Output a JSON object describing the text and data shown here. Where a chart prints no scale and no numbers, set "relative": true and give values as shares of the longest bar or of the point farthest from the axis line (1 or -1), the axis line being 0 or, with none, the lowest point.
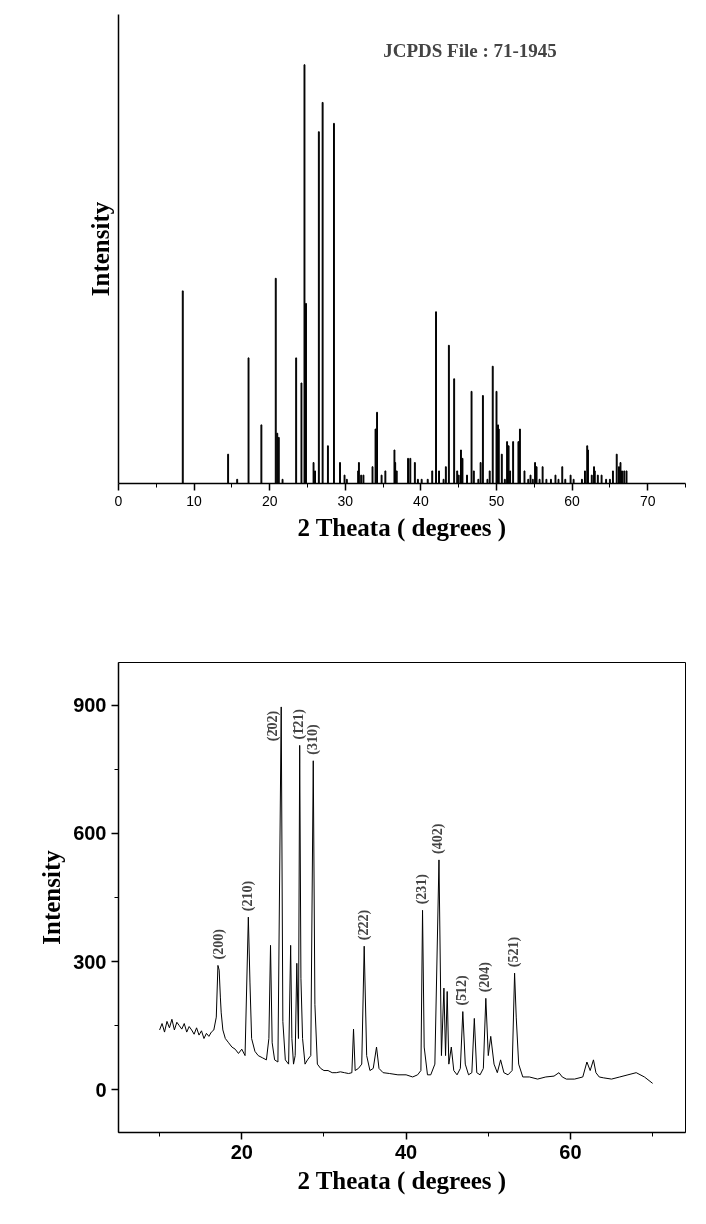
{
  "chart_data": [
    {
      "type": "bar",
      "relative": true,
      "xlabel": "2 Theata ( degrees )",
      "ylabel": "Intensity",
      "annotations": [
        "JCPDS File : 71-1945"
      ],
      "xlim": [
        0,
        75
      ],
      "xticks": [
        0,
        10,
        20,
        30,
        40,
        50,
        60,
        70
      ],
      "tick_labels": "x",
      "x": [
        8.5,
        14.5,
        15.7,
        17.2,
        18.9,
        20.8,
        21.0,
        21.2,
        21.7,
        23.5,
        24.2,
        24.6,
        24.8,
        25.8,
        26.0,
        26.5,
        27.0,
        27.7,
        28.5,
        29.3,
        29.9,
        30.2,
        31.7,
        31.8,
        32.1,
        32.4,
        33.6,
        34.0,
        34.2,
        34.8,
        35.3,
        36.5,
        36.6,
        36.8,
        38.3,
        38.6,
        39.2,
        39.6,
        40.1,
        40.9,
        41.5,
        42.0,
        42.4,
        43.0,
        43.3,
        43.7,
        44.4,
        44.8,
        45.0,
        45.3,
        45.5,
        46.1,
        46.7,
        47.0,
        47.6,
        47.9,
        48.2,
        48.8,
        49.1,
        49.5,
        50.0,
        50.2,
        50.3,
        50.7,
        51.1,
        51.4,
        51.6,
        51.8,
        52.2,
        52.9,
        53.1,
        53.7,
        54.2,
        54.5,
        54.8,
        55.1,
        55.3,
        55.7,
        56.1,
        56.6,
        57.2,
        57.8,
        58.2,
        58.7,
        59.1,
        59.8,
        60.2,
        61.3,
        61.7,
        62.0,
        62.1,
        62.6,
        62.9,
        63.0,
        63.4,
        63.9,
        64.5,
        65.0,
        65.4,
        65.9,
        66.2,
        66.4,
        66.6,
        66.9,
        67.2
      ],
      "values": [
        0.46,
        0.07,
        0.01,
        0.3,
        0.14,
        0.49,
        0.12,
        0.11,
        0.01,
        0.3,
        0.24,
        1.0,
        0.43,
        0.05,
        0.03,
        0.84,
        0.91,
        0.09,
        0.86,
        0.05,
        0.02,
        0.01,
        0.03,
        0.05,
        0.02,
        0.02,
        0.04,
        0.13,
        0.17,
        0.02,
        0.03,
        0.08,
        0.05,
        0.03,
        0.06,
        0.06,
        0.05,
        0.01,
        0.01,
        0.01,
        0.03,
        0.41,
        0.03,
        0.01,
        0.04,
        0.33,
        0.25,
        0.03,
        0.02,
        0.08,
        0.06,
        0.02,
        0.22,
        0.03,
        0.01,
        0.05,
        0.21,
        0.01,
        0.03,
        0.28,
        0.22,
        0.14,
        0.13,
        0.07,
        0.01,
        0.1,
        0.09,
        0.03,
        0.1,
        0.1,
        0.13,
        0.03,
        0.01,
        0.02,
        0.01,
        0.05,
        0.04,
        0.01,
        0.04,
        0.01,
        0.01,
        0.02,
        0.01,
        0.04,
        0.01,
        0.02,
        0.01,
        0.01,
        0.03,
        0.09,
        0.08,
        0.02,
        0.04,
        0.03,
        0.02,
        0.02,
        0.01,
        0.01,
        0.03,
        0.07,
        0.04,
        0.05,
        0.03,
        0.03,
        0.03
      ],
      "color": "#000000"
    },
    {
      "type": "line",
      "xlabel": "2 Theata ( degrees )",
      "ylabel": "Intensity",
      "xlim": [
        5,
        74
      ],
      "xticks": [
        20,
        40,
        60
      ],
      "ylim": [
        -100,
        1000
      ],
      "yticks": [
        0,
        300,
        600,
        900
      ],
      "color": "#000000",
      "x": [
        10,
        10.3,
        10.6,
        10.9,
        11.2,
        11.5,
        11.8,
        12.1,
        12.4,
        12.7,
        13.0,
        13.3,
        13.6,
        13.9,
        14.2,
        14.5,
        14.8,
        15.1,
        15.4,
        15.7,
        16.0,
        16.3,
        16.6,
        16.9,
        17.1,
        17.25,
        17.4,
        17.5,
        17.7,
        18.0,
        18.4,
        18.8,
        19.2,
        19.6,
        20.0,
        20.4,
        20.8,
        21.0,
        21.2,
        21.6,
        22.0,
        22.5,
        23.0,
        23.3,
        23.5,
        23.7,
        24.0,
        24.4,
        24.8,
        25.0,
        25.3,
        25.7,
        25.95,
        26.1,
        26.3,
        26.5,
        26.7,
        26.9,
        27.05,
        27.2,
        27.4,
        27.7,
        28.0,
        28.4,
        28.7,
        28.9,
        29.2,
        29.6,
        30.0,
        30.5,
        31,
        31.5,
        32,
        32.5,
        33,
        33.4,
        33.6,
        33.8,
        34.2,
        34.6,
        34.9,
        35.2,
        35.6,
        36.0,
        36.4,
        36.7,
        37.2,
        38,
        39,
        40,
        40.8,
        41.4,
        41.8,
        42.0,
        42.2,
        42.6,
        43.0,
        43.5,
        44.0,
        44.3,
        44.6,
        44.8,
        45.0,
        45.2,
        45.5,
        45.8,
        46.2,
        46.6,
        46.9,
        47.2,
        47.6,
        48.0,
        48.3,
        48.6,
        49.0,
        49.4,
        49.7,
        50.0,
        50.3,
        50.7,
        51.1,
        51.5,
        51.9,
        52.4,
        52.9,
        53.2,
        53.4,
        53.7,
        54.2,
        55,
        56,
        57,
        58,
        58.6,
        59,
        59.5,
        60.5,
        61.5,
        62.0,
        62.4,
        62.8,
        63.1,
        63.5,
        64,
        65,
        66,
        67,
        68,
        69,
        70
      ],
      "values": [
        140,
        155,
        135,
        160,
        145,
        165,
        140,
        158,
        150,
        142,
        155,
        135,
        148,
        140,
        130,
        145,
        128,
        138,
        120,
        132,
        125,
        135,
        140,
        170,
        291,
        280,
        215,
        180,
        140,
        120,
        110,
        100,
        95,
        85,
        95,
        80,
        404,
        250,
        120,
        90,
        80,
        75,
        70,
        120,
        338,
        110,
        70,
        65,
        896,
        160,
        70,
        60,
        338,
        120,
        60,
        80,
        296,
        120,
        806,
        261,
        120,
        60,
        70,
        80,
        770,
        200,
        60,
        50,
        45,
        45,
        40,
        40,
        42,
        40,
        38,
        40,
        142,
        45,
        50,
        60,
        336,
        80,
        45,
        50,
        100,
        50,
        40,
        38,
        35,
        35,
        30,
        35,
        45,
        420,
        100,
        35,
        35,
        60,
        538,
        80,
        238,
        80,
        230,
        60,
        100,
        45,
        35,
        50,
        183,
        60,
        35,
        40,
        167,
        40,
        35,
        50,
        214,
        80,
        125,
        60,
        40,
        70,
        40,
        35,
        45,
        273,
        170,
        60,
        30,
        30,
        25,
        30,
        32,
        40,
        30,
        25,
        25,
        30,
        65,
        45,
        70,
        40,
        30,
        28,
        25,
        30,
        35,
        40,
        30,
        15
      ],
      "annotations": [
        {
          "text": "(200)",
          "x": 17.25,
          "y": 291
        },
        {
          "text": "(210)",
          "x": 20.8,
          "y": 404
        },
        {
          "text": "(2̄02)",
          "x": 24.8,
          "y": 896
        },
        {
          "text": "(1̄21)",
          "x": 27.05,
          "y": 806
        },
        {
          "text": "(310)",
          "x": 28.7,
          "y": 770
        },
        {
          "text": "(2̄22)",
          "x": 34.9,
          "y": 336
        },
        {
          "text": "(231)",
          "x": 42.0,
          "y": 420
        },
        {
          "text": "(402)",
          "x": 44.0,
          "y": 538
        },
        {
          "text": "(5̄12)",
          "x": 46.9,
          "y": 183
        },
        {
          "text": "(204)",
          "x": 49.7,
          "y": 214
        },
        {
          "text": "(521)",
          "x": 53.2,
          "y": 273
        }
      ]
    }
  ]
}
